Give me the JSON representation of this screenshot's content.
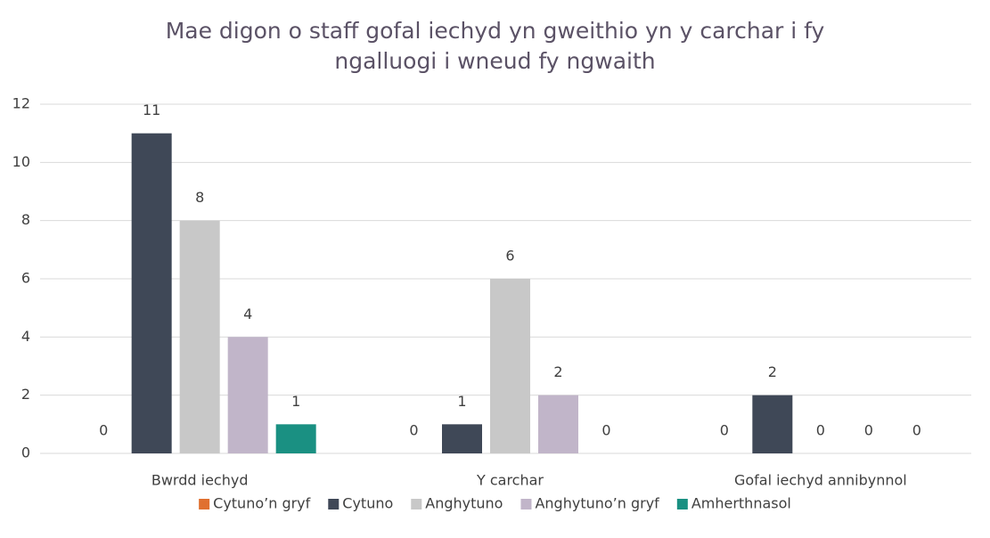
{
  "chart_data": {
    "type": "bar",
    "title": "Mae digon o staff gofal iechyd yn gweithio yn y carchar i fy ngalluogi i wneud fy ngwaith",
    "categories": [
      "Bwrdd iechyd",
      "Y carchar",
      "Gofal iechyd annibynnol"
    ],
    "series": [
      {
        "name": "Cytuno’n gryf",
        "color": "#e07030",
        "values": [
          0,
          0,
          0
        ]
      },
      {
        "name": "Cytuno",
        "color": "#3f4857",
        "values": [
          11,
          1,
          2
        ]
      },
      {
        "name": "Anghytuno",
        "color": "#c8c8c8",
        "values": [
          8,
          6,
          0
        ]
      },
      {
        "name": "Anghytuno’n gryf",
        "color": "#c1b5c9",
        "values": [
          4,
          2,
          0
        ]
      },
      {
        "name": "Amherthnasol",
        "color": "#1a9082",
        "values": [
          1,
          0,
          0
        ]
      }
    ],
    "ylim": [
      0,
      12
    ],
    "yticks": [
      0,
      2,
      4,
      6,
      8,
      10,
      12
    ],
    "grid": true,
    "legend": "bottom"
  }
}
